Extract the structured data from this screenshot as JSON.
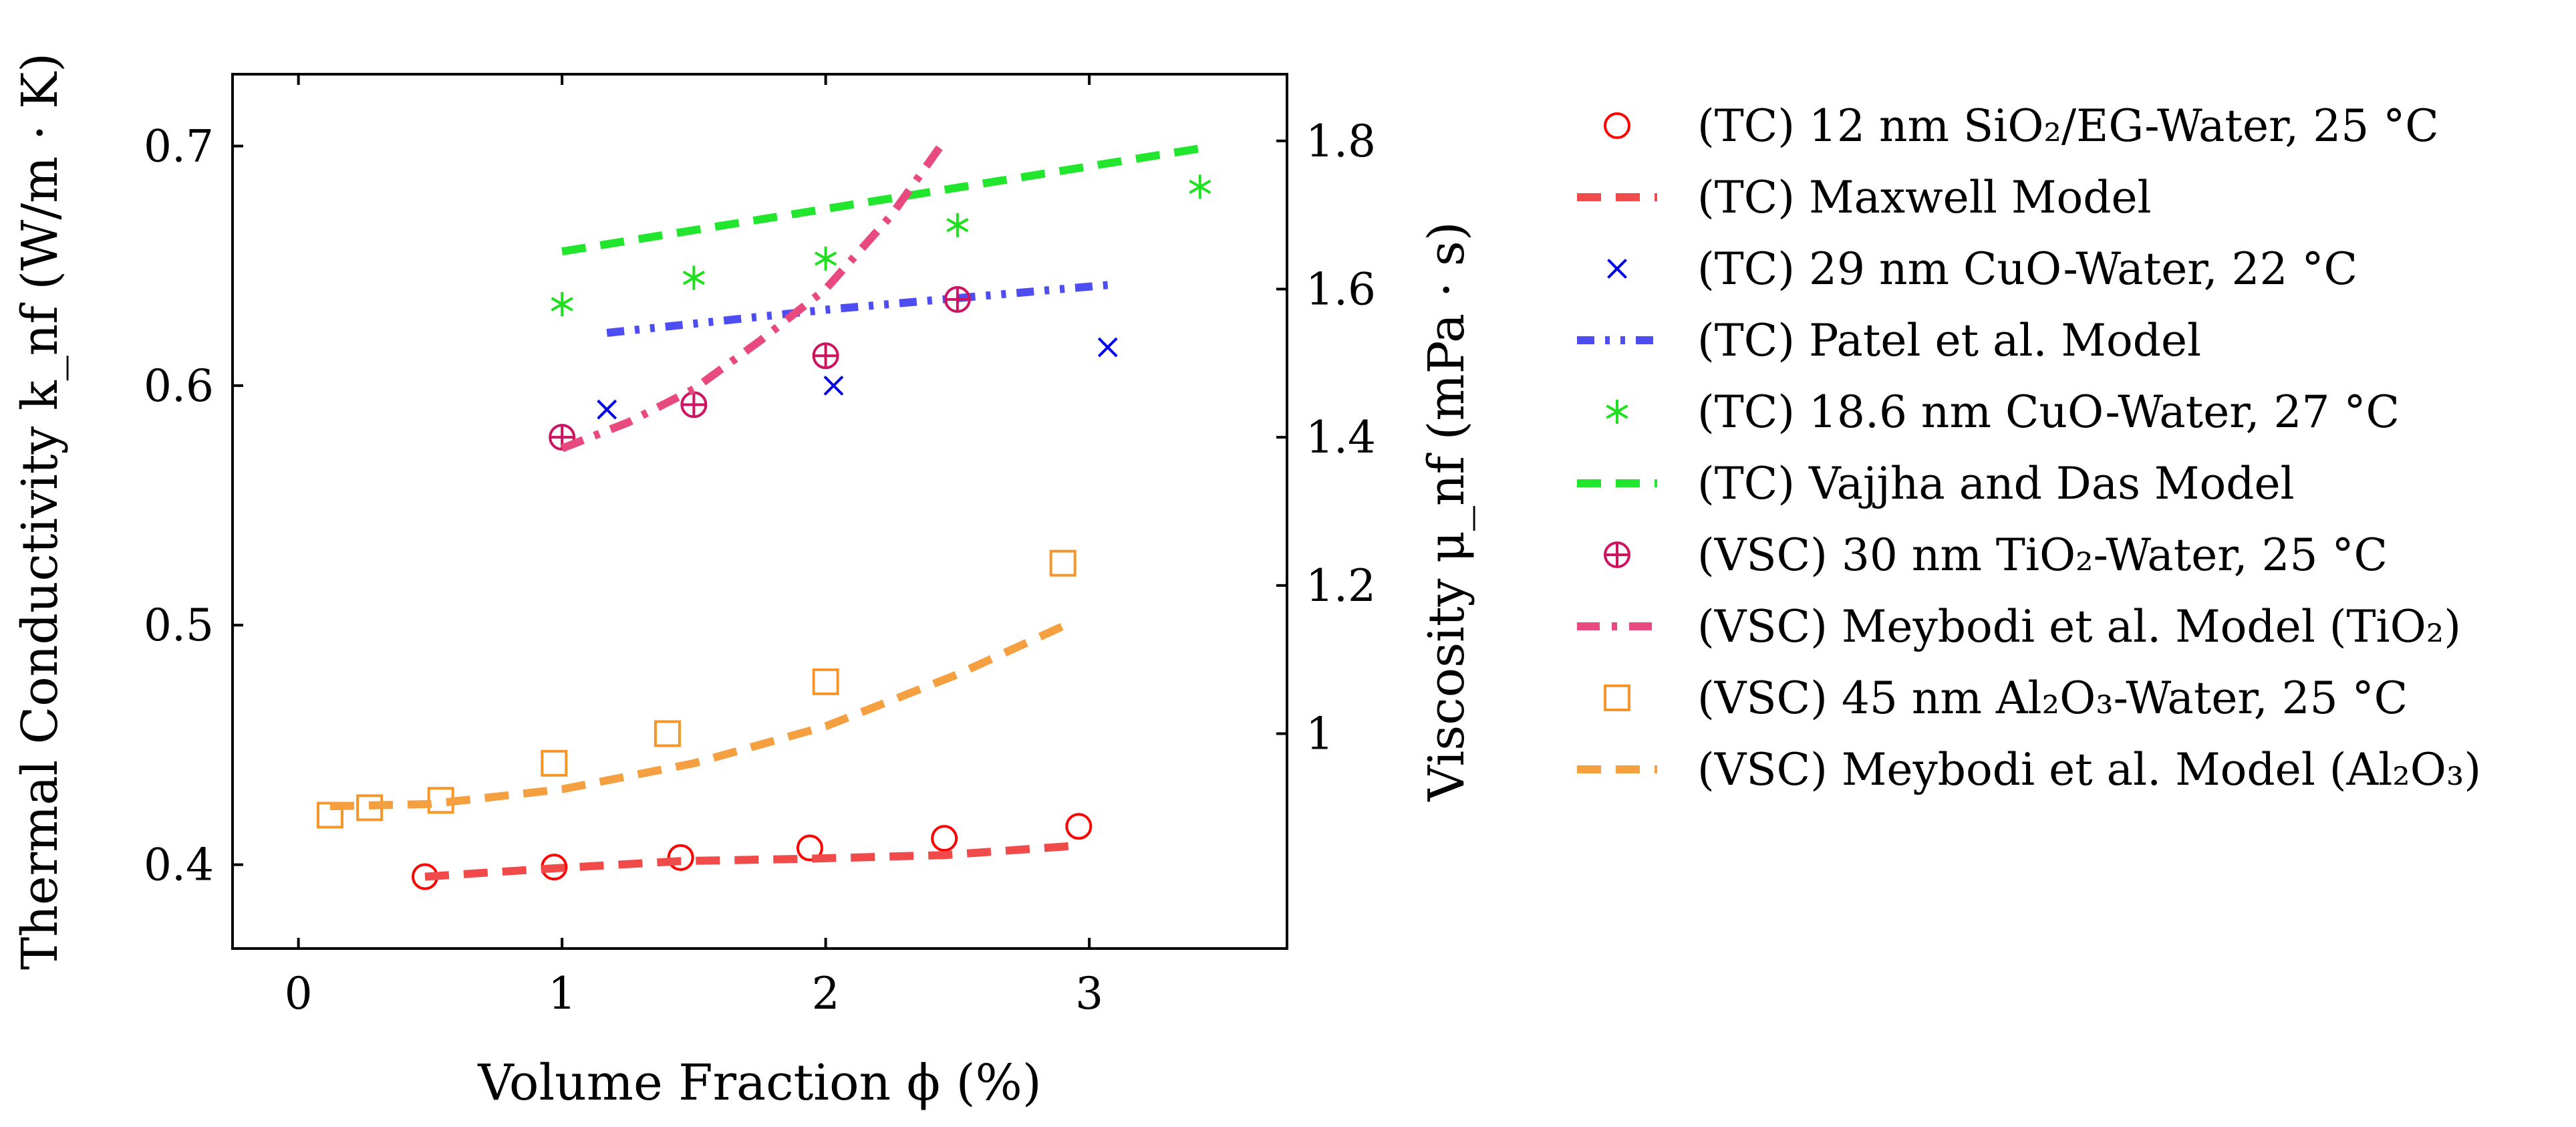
{
  "chart_data": {
    "type": "scatter",
    "xlabel": "Volume Fraction ϕ (%)",
    "ylabel_left": "Thermal Conductivity k_nf (W/m · K)",
    "ylabel_right": "Viscosity μ_nf (mPa · s)",
    "xlim": [
      -0.25,
      3.75
    ],
    "ylim_left": [
      0.365,
      0.73
    ],
    "ylim_right": [
      0.71,
      1.89
    ],
    "xticks": [
      "0",
      "1",
      "2",
      "3"
    ],
    "yticks_left": [
      "0.4",
      "0.5",
      "0.6",
      "0.7"
    ],
    "yticks_right": [
      "1",
      "1.2",
      "1.4",
      "1.6",
      "1.8"
    ],
    "series": [
      {
        "name": "(TC) 12 nm SiO₂/EG-Water, 25 °C",
        "axis": "left",
        "kind": "marker",
        "marker": "circle",
        "color": "#ff0000",
        "x": [
          0.48,
          0.97,
          1.45,
          1.94,
          2.45,
          2.96
        ],
        "y": [
          0.395,
          0.399,
          0.403,
          0.407,
          0.411,
          0.416
        ]
      },
      {
        "name": "(TC) Maxwell Model",
        "axis": "left",
        "kind": "line",
        "dash": "dashed",
        "color": "#f04a4a",
        "x": [
          0.48,
          0.97,
          1.45,
          1.94,
          2.45,
          2.96
        ],
        "y": [
          0.395,
          0.3985,
          0.4015,
          0.4025,
          0.404,
          0.408
        ]
      },
      {
        "name": "(TC) 29 nm CuO-Water, 22 °C",
        "axis": "left",
        "kind": "marker",
        "marker": "cross",
        "color": "#0000e6",
        "x": [
          1.17,
          2.03,
          3.07
        ],
        "y": [
          0.59,
          0.6,
          0.616
        ]
      },
      {
        "name": "(TC) Patel et al. Model",
        "axis": "left",
        "kind": "line",
        "dash": "dashdotdot",
        "color": "#4d4df2",
        "x": [
          1.17,
          2.03,
          3.07
        ],
        "y": [
          0.622,
          0.632,
          0.642
        ]
      },
      {
        "name": "(TC) 18.6 nm CuO-Water, 27 °C",
        "axis": "left",
        "kind": "marker",
        "marker": "star",
        "color": "#1ee01e",
        "x": [
          1.0,
          1.5,
          2.0,
          2.5,
          3.42
        ],
        "y": [
          0.634,
          0.645,
          0.653,
          0.667,
          0.683
        ]
      },
      {
        "name": "(TC) Vajjha and Das Model",
        "axis": "left",
        "kind": "line",
        "dash": "dashed",
        "color": "#22e62e",
        "x": [
          1.0,
          3.42
        ],
        "y": [
          0.656,
          0.699
        ]
      },
      {
        "name": "(VSC) 30 nm TiO₂-Water, 25 °C",
        "axis": "right",
        "kind": "marker",
        "marker": "oplus",
        "color": "#cc1460",
        "x": [
          1.0,
          1.5,
          2.0,
          2.5
        ],
        "y": [
          1.4,
          1.444,
          1.51,
          1.586
        ]
      },
      {
        "name": "(VSC) Meybodi et al. Model (TiO₂)",
        "axis": "right",
        "kind": "line",
        "dash": "dashdot",
        "color": "#e84a80",
        "x": [
          1.0,
          1.25,
          1.5,
          1.75,
          2.0,
          2.25,
          2.45
        ],
        "y": [
          1.385,
          1.42,
          1.465,
          1.53,
          1.6,
          1.7,
          1.8
        ]
      },
      {
        "name": "(VSC) 45 nm Al₂O₃-Water, 25 °C",
        "axis": "right",
        "kind": "marker",
        "marker": "square",
        "color": "#f5962a",
        "x": [
          0.12,
          0.27,
          0.54,
          0.97,
          1.4,
          2.0,
          2.9
        ],
        "y": [
          0.89,
          0.9,
          0.91,
          0.96,
          1.0,
          1.07,
          1.23
        ]
      },
      {
        "name": "(VSC) Meybodi et al. Model (Al₂O₃)",
        "axis": "right",
        "kind": "line",
        "dash": "dashed",
        "color": "#f5a040",
        "x": [
          0.12,
          0.5,
          1.0,
          1.5,
          2.0,
          2.5,
          2.9
        ],
        "y": [
          0.902,
          0.905,
          0.925,
          0.96,
          1.01,
          1.08,
          1.145
        ]
      }
    ]
  }
}
